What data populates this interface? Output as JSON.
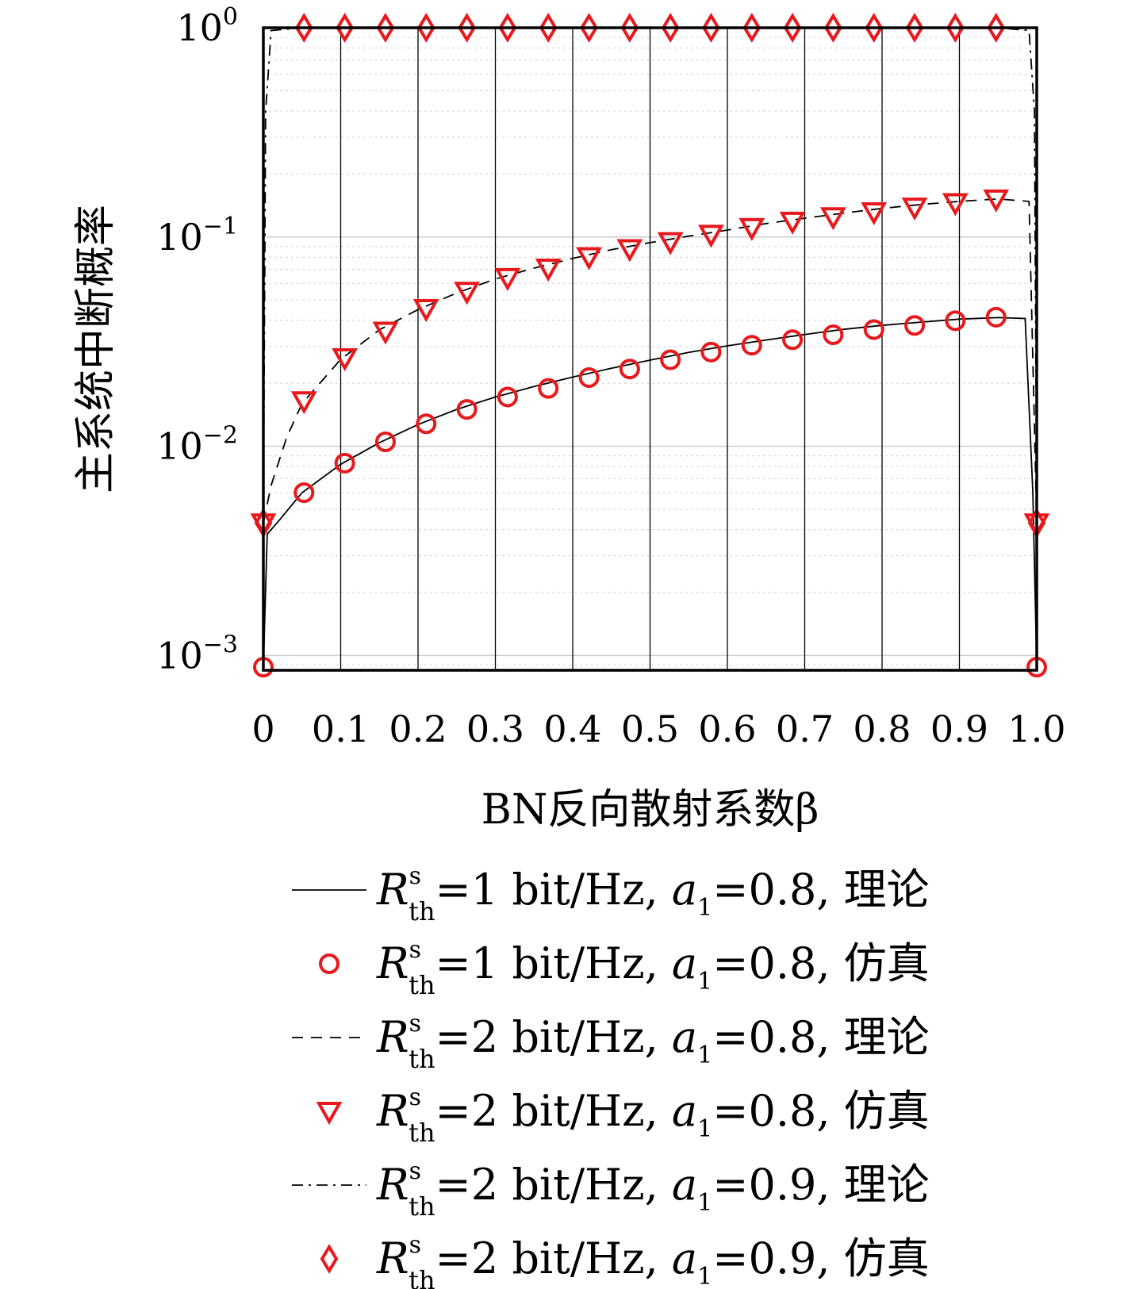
{
  "chart_data": {
    "type": "line",
    "title": "",
    "xlabel": "BN反向散射系数β",
    "ylabel": "主系统中断概率",
    "xlim": [
      0,
      1.0
    ],
    "ylim": [
      0.00085,
      1.0
    ],
    "yscale": "log",
    "grid": "vertical major lines, horizontal minor dotted lines",
    "legend_position": "bottom, below plot",
    "x_tick_labels": [
      "0",
      "0.1",
      "0.2",
      "0.3",
      "0.4",
      "0.5",
      "0.6",
      "0.7",
      "0.8",
      "0.9",
      "1.0"
    ],
    "y_ticks": [
      {
        "base": "10",
        "exp": "0",
        "value": 1
      },
      {
        "base": "10",
        "exp": "−1",
        "value": 0.1
      },
      {
        "base": "10",
        "exp": "−2",
        "value": 0.01
      },
      {
        "base": "10",
        "exp": "−3",
        "value": 0.001
      }
    ],
    "x": [
      0,
      0.0526,
      0.1053,
      0.1579,
      0.2105,
      0.2632,
      0.3158,
      0.3684,
      0.4211,
      0.4737,
      0.5263,
      0.5789,
      0.6316,
      0.6842,
      0.7368,
      0.7895,
      0.8421,
      0.8947,
      0.9474,
      1.0
    ],
    "series": [
      {
        "name": "R_th^s=1 bit/Hz, a_1=0.8, 理论",
        "style": "solid",
        "marker": "none",
        "color": "#000000",
        "points": [
          [
            0,
            0.00088
          ],
          [
            0.005,
            0.0038
          ],
          [
            0.02,
            0.0044
          ],
          [
            0.05,
            0.006
          ],
          [
            0.1,
            0.0082
          ],
          [
            0.15,
            0.0104
          ],
          [
            0.2,
            0.0127
          ],
          [
            0.25,
            0.015
          ],
          [
            0.3,
            0.0172
          ],
          [
            0.35,
            0.0193
          ],
          [
            0.4,
            0.0214
          ],
          [
            0.45,
            0.0236
          ],
          [
            0.5,
            0.0258
          ],
          [
            0.55,
            0.0281
          ],
          [
            0.6,
            0.0302
          ],
          [
            0.65,
            0.0322
          ],
          [
            0.7,
            0.0342
          ],
          [
            0.75,
            0.0362
          ],
          [
            0.8,
            0.0378
          ],
          [
            0.85,
            0.0392
          ],
          [
            0.9,
            0.0405
          ],
          [
            0.95,
            0.0412
          ],
          [
            0.985,
            0.0408
          ],
          [
            0.995,
            0.006
          ],
          [
            1.0,
            0.00088
          ]
        ]
      },
      {
        "name": "R_th^s=1 bit/Hz, a_1=0.8, 仿真",
        "style": "none",
        "marker": "circle",
        "color": "#e8191c",
        "points": [
          [
            0,
            0.00088
          ],
          [
            0.0526,
            0.006
          ],
          [
            0.1053,
            0.0083
          ],
          [
            0.1579,
            0.0105
          ],
          [
            0.2105,
            0.0128
          ],
          [
            0.2632,
            0.015
          ],
          [
            0.3158,
            0.0172
          ],
          [
            0.3684,
            0.0189
          ],
          [
            0.4211,
            0.0213
          ],
          [
            0.4737,
            0.0234
          ],
          [
            0.5263,
            0.0259
          ],
          [
            0.5789,
            0.0282
          ],
          [
            0.6316,
            0.0304
          ],
          [
            0.6842,
            0.0323
          ],
          [
            0.7368,
            0.0341
          ],
          [
            0.7895,
            0.0361
          ],
          [
            0.8421,
            0.0378
          ],
          [
            0.8947,
            0.0398
          ],
          [
            0.9474,
            0.0414
          ],
          [
            1.0,
            0.00088
          ]
        ]
      },
      {
        "name": "R_th^s=2 bit/Hz, a_1=0.8, 理论",
        "style": "dashed",
        "marker": "none",
        "color": "#000000",
        "points": [
          [
            0,
            0.0043
          ],
          [
            0.01,
            0.0065
          ],
          [
            0.03,
            0.011
          ],
          [
            0.05,
            0.016
          ],
          [
            0.1,
            0.026
          ],
          [
            0.15,
            0.036
          ],
          [
            0.2,
            0.045
          ],
          [
            0.25,
            0.054
          ],
          [
            0.3,
            0.063
          ],
          [
            0.35,
            0.071
          ],
          [
            0.4,
            0.079
          ],
          [
            0.45,
            0.087
          ],
          [
            0.5,
            0.094
          ],
          [
            0.55,
            0.101
          ],
          [
            0.6,
            0.108
          ],
          [
            0.65,
            0.116
          ],
          [
            0.7,
            0.123
          ],
          [
            0.75,
            0.13
          ],
          [
            0.8,
            0.137
          ],
          [
            0.85,
            0.143
          ],
          [
            0.9,
            0.148
          ],
          [
            0.95,
            0.152
          ],
          [
            0.99,
            0.148
          ],
          [
            1.0,
            0.0043
          ]
        ]
      },
      {
        "name": "R_th^s=2 bit/Hz, a_1=0.8, 仿真",
        "style": "none",
        "marker": "triangle-down",
        "color": "#e8191c",
        "points": [
          [
            0,
            0.0043
          ],
          [
            0.0526,
            0.0165
          ],
          [
            0.1053,
            0.0265
          ],
          [
            0.1579,
            0.0355
          ],
          [
            0.2105,
            0.0455
          ],
          [
            0.2632,
            0.055
          ],
          [
            0.3158,
            0.064
          ],
          [
            0.3684,
            0.071
          ],
          [
            0.4211,
            0.0805
          ],
          [
            0.4737,
            0.088
          ],
          [
            0.5263,
            0.095
          ],
          [
            0.5789,
            0.103
          ],
          [
            0.6316,
            0.111
          ],
          [
            0.6842,
            0.119
          ],
          [
            0.7368,
            0.125
          ],
          [
            0.7895,
            0.132
          ],
          [
            0.8421,
            0.139
          ],
          [
            0.8947,
            0.146
          ],
          [
            0.9474,
            0.152
          ],
          [
            1.0,
            0.0043
          ]
        ]
      },
      {
        "name": "R_th^s=2 bit/Hz, a_1=0.9, 理论",
        "style": "dashdot",
        "marker": "none",
        "color": "#000000",
        "points": [
          [
            0,
            0.0043
          ],
          [
            0.003,
            0.4
          ],
          [
            0.01,
            0.97
          ],
          [
            0.05,
            1.0
          ],
          [
            0.95,
            1.0
          ],
          [
            0.99,
            0.97
          ],
          [
            0.997,
            0.4
          ],
          [
            1.0,
            0.0043
          ]
        ]
      },
      {
        "name": "R_th^s=2 bit/Hz, a_1=0.9, 仿真",
        "style": "none",
        "marker": "diamond",
        "color": "#e8191c",
        "points": [
          [
            0,
            0.0043
          ],
          [
            0.0526,
            1.0
          ],
          [
            0.1053,
            1.0
          ],
          [
            0.1579,
            1.0
          ],
          [
            0.2105,
            1.0
          ],
          [
            0.2632,
            1.0
          ],
          [
            0.3158,
            1.0
          ],
          [
            0.3684,
            1.0
          ],
          [
            0.4211,
            1.0
          ],
          [
            0.4737,
            1.0
          ],
          [
            0.5263,
            1.0
          ],
          [
            0.5789,
            1.0
          ],
          [
            0.6316,
            1.0
          ],
          [
            0.6842,
            1.0
          ],
          [
            0.7368,
            1.0
          ],
          [
            0.7895,
            1.0
          ],
          [
            0.8421,
            1.0
          ],
          [
            0.8947,
            1.0
          ],
          [
            0.9474,
            1.0
          ],
          [
            1.0,
            0.0043
          ]
        ]
      }
    ],
    "legend": [
      {
        "line": "solid",
        "marker": "none",
        "R": "R",
        "sup": "s",
        "sub": "th",
        "mid": "=1 bit/Hz, ",
        "a": "a",
        "a_sub": "1",
        "tail": "=0.8, 理论"
      },
      {
        "line": "none",
        "marker": "circle",
        "R": "R",
        "sup": "s",
        "sub": "th",
        "mid": "=1 bit/Hz, ",
        "a": "a",
        "a_sub": "1",
        "tail": "=0.8, 仿真"
      },
      {
        "line": "dashed",
        "marker": "none",
        "R": "R",
        "sup": "s",
        "sub": "th",
        "mid": "=2 bit/Hz, ",
        "a": "a",
        "a_sub": "1",
        "tail": "=0.8, 理论"
      },
      {
        "line": "none",
        "marker": "triangle-down",
        "R": "R",
        "sup": "s",
        "sub": "th",
        "mid": "=2 bit/Hz, ",
        "a": "a",
        "a_sub": "1",
        "tail": "=0.8, 仿真"
      },
      {
        "line": "dashdot",
        "marker": "none",
        "R": "R",
        "sup": "s",
        "sub": "th",
        "mid": "=2 bit/Hz, ",
        "a": "a",
        "a_sub": "1",
        "tail": "=0.9, 理论"
      },
      {
        "line": "none",
        "marker": "diamond",
        "R": "R",
        "sup": "s",
        "sub": "th",
        "mid": "=2 bit/Hz, ",
        "a": "a",
        "a_sub": "1",
        "tail": "=0.9, 仿真"
      }
    ],
    "colors": {
      "marker": "#e8191c",
      "line": "#000000",
      "grid_major": "#cccccc",
      "grid_minor": "#d9d9d9"
    }
  }
}
